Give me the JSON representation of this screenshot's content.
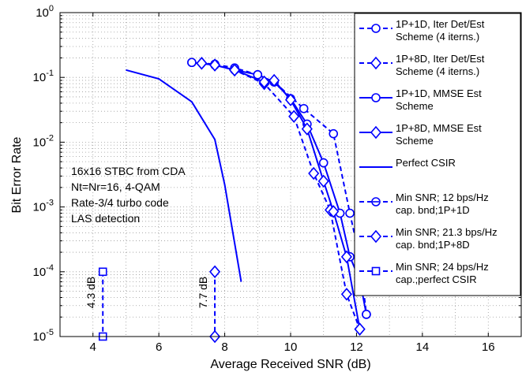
{
  "chart_data": {
    "type": "line",
    "xlabel": "Average Received SNR (dB)",
    "ylabel": "Bit Error Rate",
    "xlim": [
      3,
      17
    ],
    "ylim_log10": [
      -5,
      0
    ],
    "log_y": true,
    "grid": "major-and-minor, dotted",
    "legend_position": "top-right",
    "x_ticks": [
      "4",
      "6",
      "8",
      "10",
      "12",
      "14",
      "16"
    ],
    "y_ticks": [
      {
        "base": "10",
        "exp": "0"
      },
      {
        "base": "10",
        "exp": "-1"
      },
      {
        "base": "10",
        "exp": "-2"
      },
      {
        "base": "10",
        "exp": "-3"
      },
      {
        "base": "10",
        "exp": "-4"
      },
      {
        "base": "10",
        "exp": "-5"
      }
    ],
    "annotation_lines": [
      "16x16 STBC from CDA",
      "Nt=Nr=16, 4-QAM",
      "Rate-3/4 turbo code",
      "LAS detection"
    ],
    "gap_labels": [
      "4.3 dB",
      "7.7 dB"
    ],
    "series": [
      {
        "name": "1P+1D, Iter Det/Est Scheme (4 iterns.)",
        "legend_lines": [
          "1P+1D, Iter Det/Est",
          "Scheme (4 iterns.)"
        ],
        "color": "#0000ff",
        "dash": "6,4",
        "marker": "circle",
        "x": [
          7,
          7.7,
          8.3,
          9,
          9.5,
          10.4,
          11.3,
          11.8,
          12.1,
          12.3
        ],
        "y": [
          0.17,
          0.16,
          0.14,
          0.11,
          0.085,
          0.033,
          0.0135,
          0.0008,
          0.00016,
          2.2e-05
        ]
      },
      {
        "name": "1P+8D, Iter Det/Est Scheme (4 iterns.)",
        "legend_lines": [
          "1P+8D, Iter Det/Est",
          "Scheme (4 iterns.)"
        ],
        "color": "#0000ff",
        "dash": "6,4",
        "marker": "diamond",
        "x": [
          7.3,
          7.7,
          8.3,
          9.2,
          10.1,
          10.7,
          11.2,
          11.7,
          12.1
        ],
        "y": [
          0.165,
          0.155,
          0.13,
          0.08,
          0.025,
          0.0033,
          0.0009,
          4.5e-05,
          1.3e-05
        ]
      },
      {
        "name": "1P+1D, MMSE Est Scheme",
        "legend_lines": [
          "1P+1D, MMSE Est",
          " Scheme"
        ],
        "color": "#0000ff",
        "dash": "",
        "marker": "circle",
        "x": [
          7,
          7.7,
          8.3,
          9,
          9.5,
          10,
          10.5,
          11,
          11.5,
          11.8,
          12.1,
          12.3
        ],
        "y": [
          0.17,
          0.155,
          0.13,
          0.11,
          0.085,
          0.047,
          0.019,
          0.0048,
          0.0008,
          0.00017,
          7.5e-05,
          2.2e-05
        ]
      },
      {
        "name": "1P+8D, MMSE Est Scheme",
        "legend_lines": [
          "1P+8D, MMSE Est",
          "Scheme"
        ],
        "color": "#0000ff",
        "dash": "",
        "marker": "diamond",
        "x": [
          7.3,
          7.7,
          8.3,
          9.2,
          9.5,
          10,
          10.5,
          11,
          11.3,
          11.7,
          12.1
        ],
        "y": [
          0.165,
          0.155,
          0.13,
          0.085,
          0.09,
          0.045,
          0.016,
          0.0025,
          0.00085,
          0.00017,
          1.3e-05
        ]
      },
      {
        "name": "Perfect CSIR",
        "legend_lines": [
          "Perfect CSIR"
        ],
        "color": "#0000ff",
        "dash": "",
        "marker": "none",
        "x": [
          5,
          6,
          7,
          7.7,
          8,
          8.5
        ],
        "y": [
          0.13,
          0.095,
          0.042,
          0.011,
          0.0022,
          7e-05
        ]
      },
      {
        "name": "Min SNR; 12 bps/Hz cap. bnd;1P+1D",
        "legend_lines": [
          "Min SNR; 12 bps/Hz",
          "cap. bnd;1P+1D"
        ],
        "color": "#0000ff",
        "dash": "6,4",
        "marker": "circle-bar",
        "x": [],
        "y": []
      },
      {
        "name": "Min SNR; 21.3 bps/Hz cap. bnd;1P+8D",
        "legend_lines": [
          "Min SNR; 21.3 bps/Hz",
          "cap. bnd;1P+8D"
        ],
        "color": "#0000ff",
        "dash": "6,4",
        "marker": "diamond",
        "x": [
          7.7,
          7.7
        ],
        "y": [
          0.0001,
          1e-05
        ]
      },
      {
        "name": "Min SNR; 24 bps/Hz cap.;perfect CSIR",
        "legend_lines": [
          "Min SNR; 24 bps/Hz",
          "cap.;perfect CSIR"
        ],
        "color": "#0000ff",
        "dash": "6,4",
        "marker": "square",
        "x": [
          4.3,
          4.3
        ],
        "y": [
          0.0001,
          1e-05
        ]
      }
    ]
  }
}
